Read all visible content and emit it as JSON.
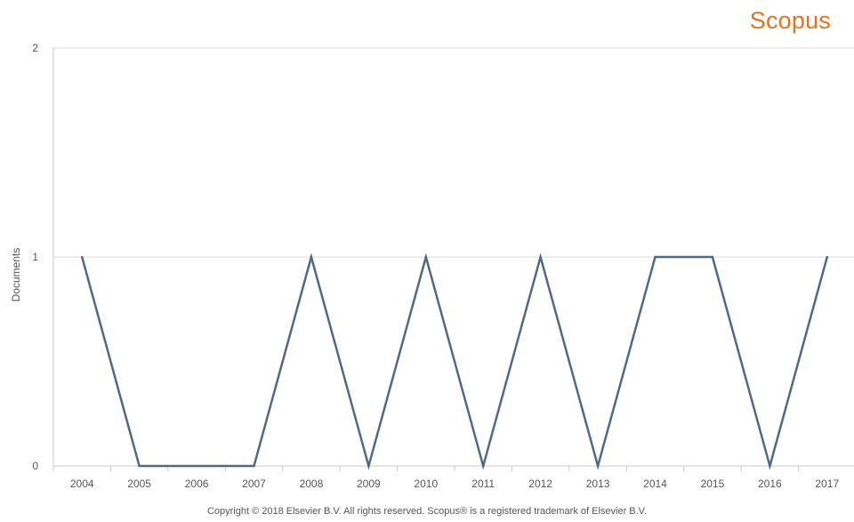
{
  "brand": {
    "logo_text": "Scopus"
  },
  "footer": {
    "copyright": "Copyright © 2018 Elsevier B.V. All rights reserved. Scopus® is a registered trademark of Elsevier B.V."
  },
  "colors": {
    "series": "#4f6a85",
    "grid": "#d9d9d9",
    "axis": "#c9c9c9",
    "tick_text": "#555555",
    "brand": "#e9711c"
  },
  "chart_data": {
    "type": "line",
    "title": "",
    "xlabel": "",
    "ylabel": "Documents",
    "ylim": [
      0,
      2
    ],
    "yticks": [
      0,
      1,
      2
    ],
    "x": [
      "2004",
      "2005",
      "2006",
      "2007",
      "2008",
      "2009",
      "2010",
      "2011",
      "2012",
      "2013",
      "2014",
      "2015",
      "2016",
      "2017"
    ],
    "series": [
      {
        "values": [
          1,
          0,
          0,
          0,
          1,
          0,
          1,
          0,
          1,
          0,
          1,
          1,
          0,
          1
        ]
      }
    ],
    "grid": true
  }
}
